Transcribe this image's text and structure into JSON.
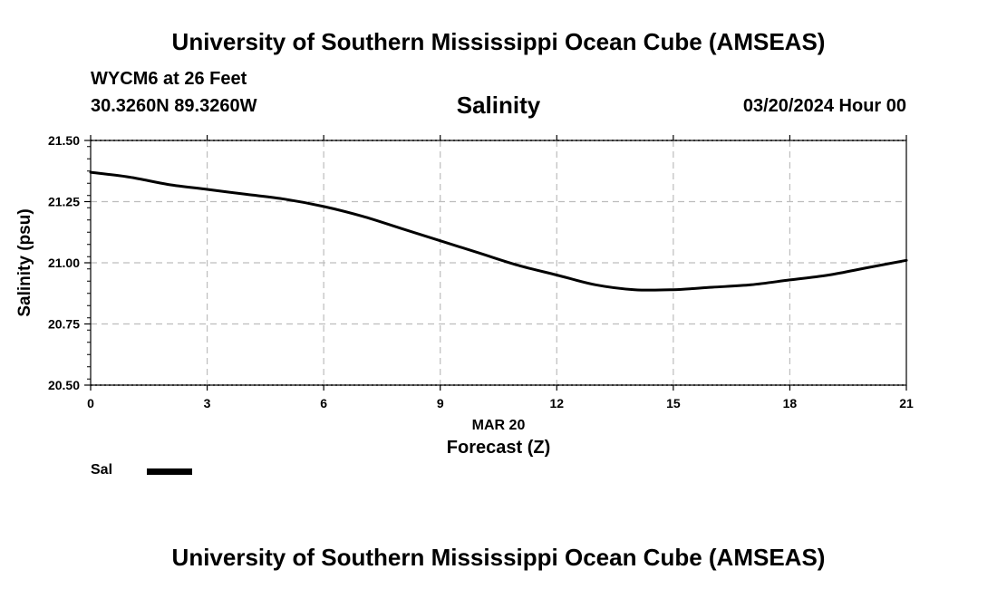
{
  "header": {
    "org_title": "University of Southern Mississippi Ocean Cube (AMSEAS)",
    "station": "WYCM6 at 26 Feet",
    "coordinates": "30.3260N  89.3260W",
    "datetime": "03/20/2024 Hour 00"
  },
  "footer": {
    "org_title": "University of Southern Mississippi Ocean Cube (AMSEAS)"
  },
  "legend": {
    "label": "Sal"
  },
  "chart_data": {
    "type": "line",
    "title": "Salinity",
    "xlabel": "Forecast (Z)",
    "xdate_label": "MAR 20",
    "ylabel": "Salinity (psu)",
    "xlim": [
      0,
      21
    ],
    "ylim": [
      20.5,
      21.5
    ],
    "xticks": [
      0,
      3,
      6,
      9,
      12,
      15,
      18,
      21
    ],
    "yticks": [
      "20.50",
      "20.75",
      "21.00",
      "21.25",
      "21.50"
    ],
    "grid": true,
    "legend_position": "bottom-left",
    "series": [
      {
        "name": "Sal",
        "color": "#000000",
        "x": [
          0,
          1,
          2,
          3,
          4,
          5,
          6,
          7,
          8,
          9,
          10,
          11,
          12,
          13,
          14,
          15,
          16,
          17,
          18,
          19,
          20,
          21
        ],
        "y": [
          21.37,
          21.35,
          21.32,
          21.3,
          21.28,
          21.26,
          21.23,
          21.19,
          21.14,
          21.09,
          21.04,
          20.99,
          20.95,
          20.91,
          20.89,
          20.89,
          20.9,
          20.91,
          20.93,
          20.95,
          20.98,
          21.01
        ]
      }
    ]
  }
}
